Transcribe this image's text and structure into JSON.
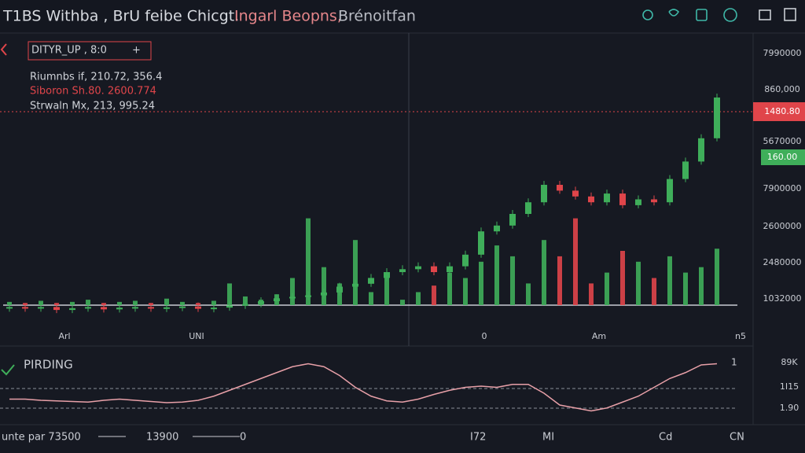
{
  "header": {
    "title": "T1BS Withba , BrU feibe Chicgt.",
    "title_mid": "Ingarl Beopns,",
    "title_end": "Brénoitfan"
  },
  "legend_box": {
    "label": "DITYR_UP , 8:0",
    "plus": "+"
  },
  "info_lines": [
    "Riumnbs if, 210.72, 356.4",
    "Siboron Sh.80. 2600.774",
    "Strwaln Mx, 213, 995.24"
  ],
  "price_labels": [
    "7990000",
    "860,000",
    "1480.80",
    "5670000",
    "160.00",
    "7900000",
    "2600000",
    "2480000",
    "1032000"
  ],
  "x_labels": [
    "Arl",
    "UNI",
    "0",
    "Am",
    "n5"
  ],
  "chart_data": {
    "type": "candlestick",
    "up_color": "#3fae5a",
    "down_color": "#e0454a",
    "ylim": [
      0,
      100
    ],
    "close": [
      8,
      7.5,
      8,
      7,
      7.6,
      8,
      7.2,
      7.8,
      8,
      7.5,
      7.9,
      8.2,
      7.4,
      7.8,
      8.5,
      9,
      10,
      11,
      11.5,
      12,
      13,
      15,
      16,
      18,
      20,
      21,
      22,
      20,
      22,
      26,
      34,
      36,
      40,
      44,
      50,
      48,
      46,
      44,
      47,
      43,
      45,
      44,
      52,
      58,
      66,
      80
    ],
    "volume_ylim": [
      0,
      100
    ],
    "volume": [
      3,
      2,
      4,
      2,
      3,
      5,
      2,
      3,
      4,
      2,
      6,
      3,
      2,
      4,
      20,
      8,
      5,
      10,
      25,
      80,
      35,
      20,
      60,
      12,
      30,
      5,
      12,
      18,
      30,
      25,
      40,
      55,
      45,
      20,
      60,
      45,
      80,
      20,
      30,
      50,
      40,
      25,
      45,
      30,
      35,
      52
    ]
  },
  "indicator": {
    "title": "PIRDING",
    "marker": "1",
    "labels": [
      "89K",
      "1I15",
      "1.90"
    ],
    "ylim": [
      0,
      100
    ],
    "color": "#e8a0a8",
    "values": [
      30,
      30,
      28,
      27,
      26,
      25,
      28,
      30,
      28,
      26,
      24,
      25,
      28,
      35,
      45,
      55,
      65,
      75,
      85,
      90,
      85,
      70,
      50,
      35,
      27,
      25,
      30,
      38,
      45,
      50,
      52,
      50,
      55,
      55,
      40,
      20,
      15,
      10,
      15,
      25,
      35,
      50,
      65,
      75,
      88,
      90
    ]
  },
  "footer": {
    "items": [
      "unte par 73500",
      "13900",
      "0",
      "I72",
      "MI",
      "Cd",
      "CN"
    ]
  }
}
